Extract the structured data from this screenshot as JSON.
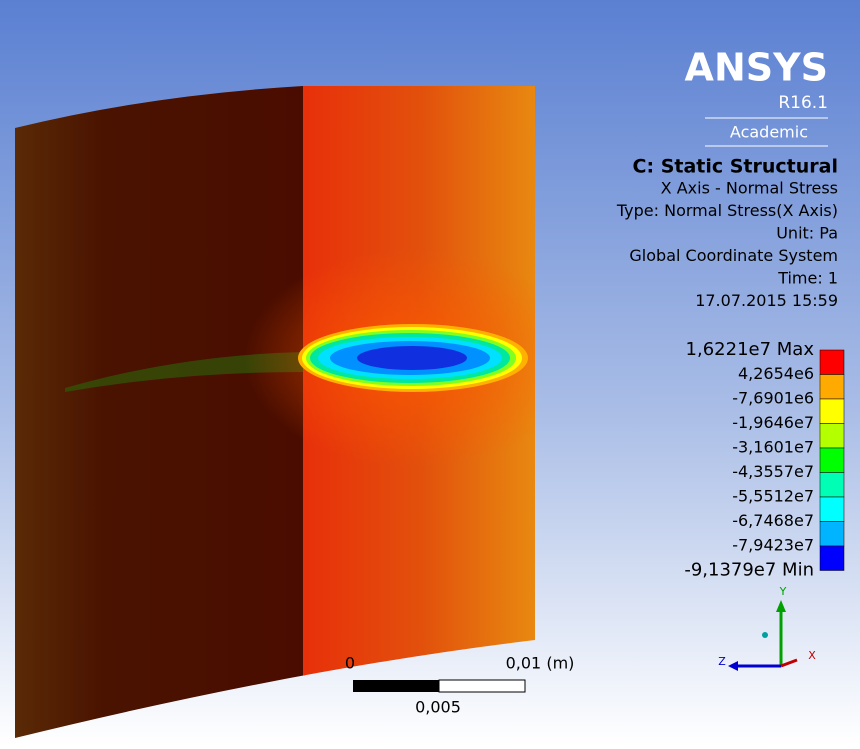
{
  "header": {
    "brand": "ANSYS",
    "version": "R16.1",
    "license": "Academic"
  },
  "info": {
    "title": "C: Static Structural",
    "lines": [
      "X Axis - Normal Stress",
      "Type: Normal Stress(X Axis)",
      "Unit: Pa",
      "Global Coordinate System",
      "Time: 1",
      "17.07.2015 15:59"
    ]
  },
  "legend": {
    "labels": [
      "1,6221e7 Max",
      "4,2654e6",
      "-7,6901e6",
      "-1,9646e7",
      "-3,1601e7",
      "-4,3557e7",
      "-5,5512e7",
      "-6,7468e7",
      "-7,9423e7",
      "-9,1379e7 Min"
    ],
    "colors": [
      "#ff0000",
      "#ffaa00",
      "#ffff00",
      "#b4ff00",
      "#00ff00",
      "#00ffb4",
      "#00ffff",
      "#00b4ff",
      "#0000ff"
    ]
  },
  "scale": {
    "start": "0",
    "end": "0,01 (m)",
    "mid": "0,005"
  },
  "triad": {
    "y": "Y",
    "z": "Z",
    "x": "X"
  }
}
